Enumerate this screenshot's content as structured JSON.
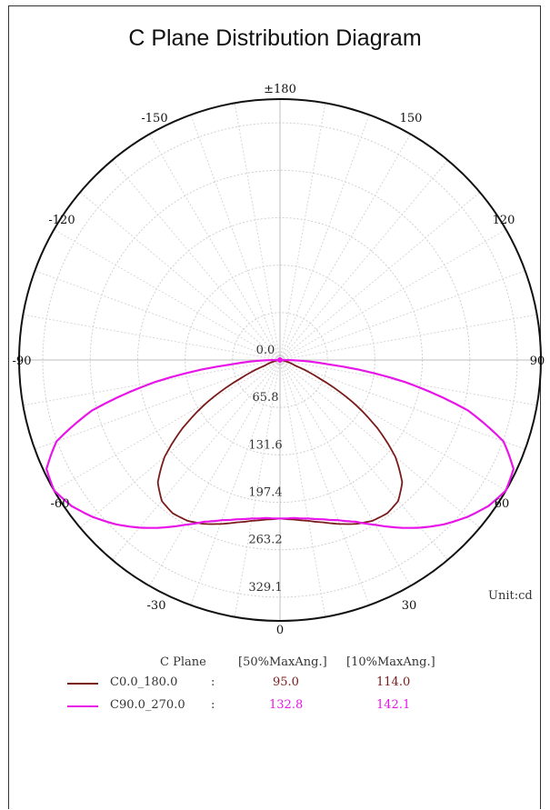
{
  "chart_data": {
    "type": "polar-line",
    "title": "C Plane Distribution Diagram",
    "angle_ticks": [
      "±180",
      "150",
      "120",
      "90",
      "60",
      "30",
      "0",
      "-30",
      "-60",
      "-90",
      "-120",
      "-150"
    ],
    "angle_tick_values": [
      180,
      150,
      120,
      90,
      60,
      30,
      0,
      -30,
      -60,
      -90,
      -120,
      -150
    ],
    "radial_ticks": [
      "0.0",
      "65.8",
      "131.6",
      "197.4",
      "263.2",
      "329.1"
    ],
    "radial_max": 329.1,
    "unit_label": "Unit:cd",
    "grid": true,
    "series": [
      {
        "name": "C0.0_180.0",
        "color": "#7a1a1a",
        "angles": [
          0,
          5,
          10,
          15,
          20,
          25,
          30,
          35,
          40,
          45,
          50,
          55,
          60,
          65,
          70,
          80,
          90,
          100,
          110,
          120,
          180
        ],
        "values": [
          200,
          202,
          206,
          212,
          220,
          228,
          234,
          236,
          232,
          218,
          190,
          150,
          105,
          55,
          20,
          3,
          0,
          0,
          0,
          0,
          0
        ]
      },
      {
        "name": "C90.0_270.0",
        "color": "#e815e8",
        "angles": [
          0,
          5,
          10,
          15,
          20,
          25,
          30,
          35,
          40,
          45,
          50,
          55,
          60,
          65,
          70,
          75,
          80,
          85,
          90,
          100,
          110,
          120,
          180
        ],
        "values": [
          200,
          200,
          203,
          208,
          215,
          225,
          240,
          258,
          276,
          293,
          308,
          321,
          329,
          325,
          300,
          245,
          160,
          60,
          4,
          0,
          0,
          0,
          0
        ]
      }
    ],
    "legend": {
      "header": [
        "C Plane",
        "[50%MaxAng.]",
        "[10%MaxAng.]"
      ],
      "rows": [
        {
          "name": "C0.0_180.0",
          "sep": ":",
          "v50": "95.0",
          "v10": "114.0"
        },
        {
          "name": "C90.0_270.0",
          "sep": ":",
          "v50": "132.8",
          "v10": "142.1"
        }
      ]
    }
  }
}
